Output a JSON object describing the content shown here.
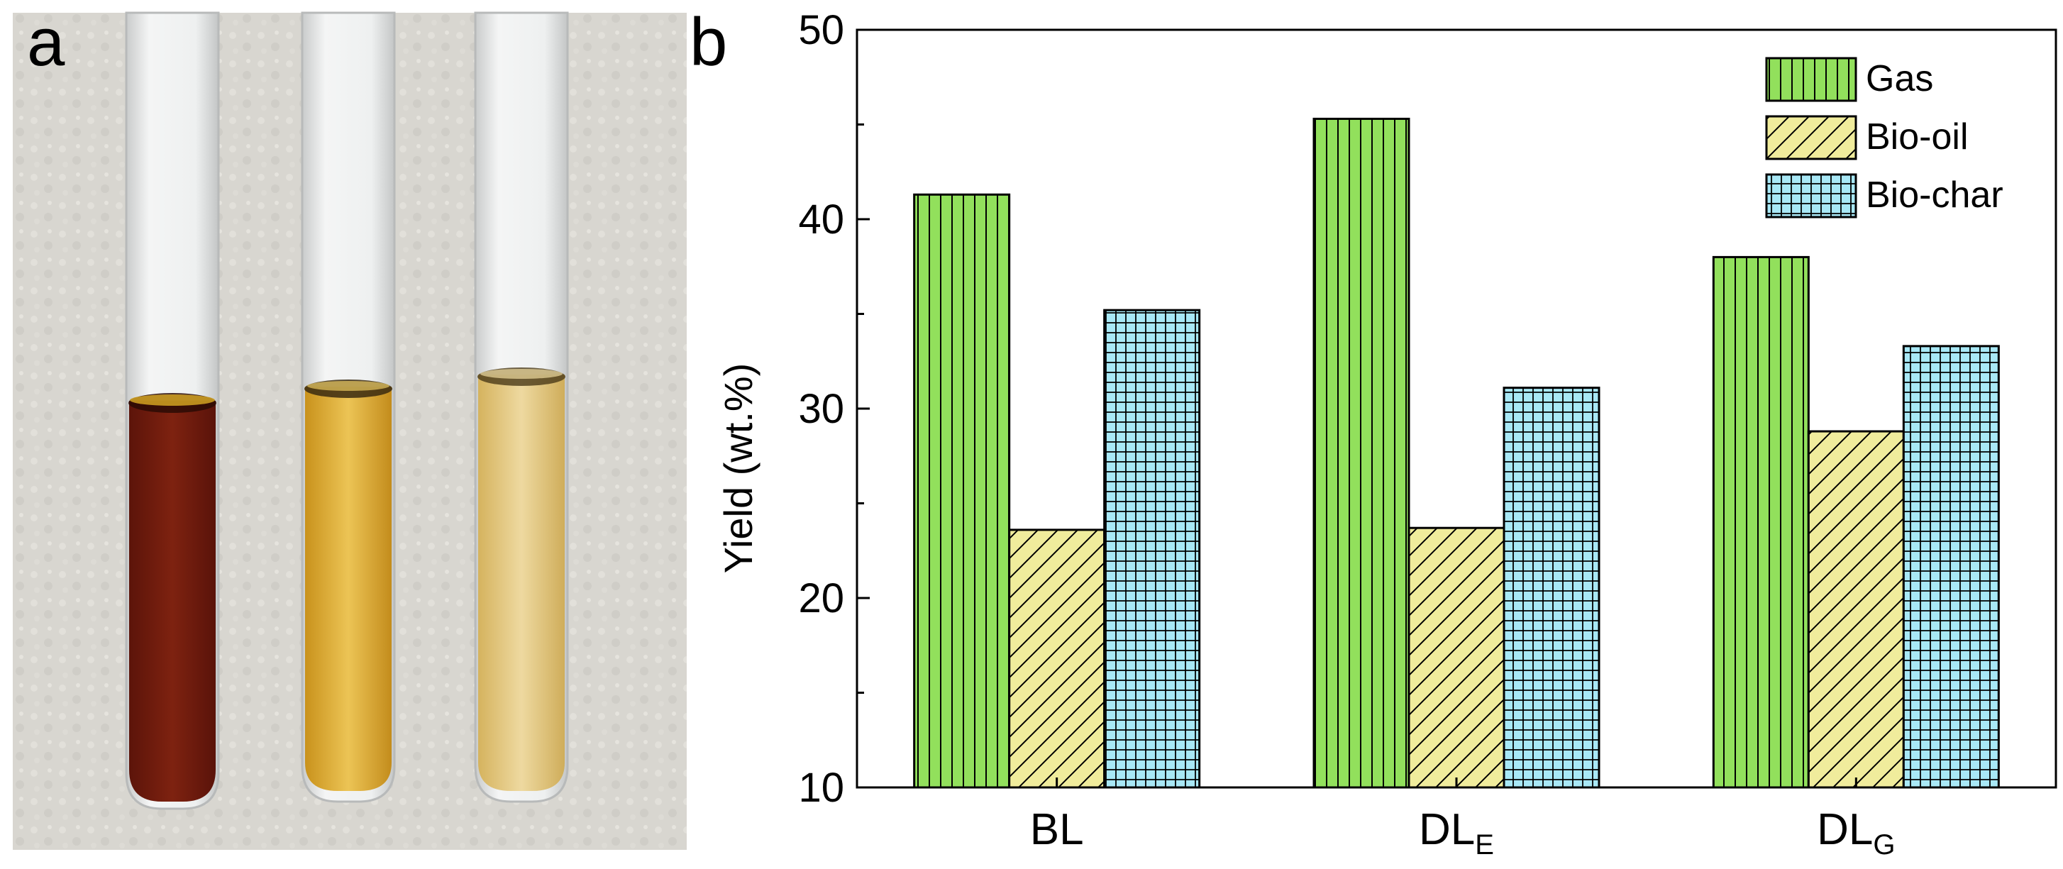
{
  "panel_a": {
    "label": "a",
    "description_names": [
      "dark-brown-sample",
      "golden-yellow-sample",
      "pale-yellow-sample"
    ],
    "colors": {
      "background": "#d8d6d0",
      "tube1_liquid": "#7a1e0e",
      "tube2_liquid": "#e2b23a",
      "tube3_liquid": "#e5cb82",
      "glass": "#e9eaea"
    }
  },
  "panel_b": {
    "label": "b"
  },
  "chart_data": {
    "type": "bar",
    "categories": [
      {
        "main": "BL",
        "sub": ""
      },
      {
        "main": "DL",
        "sub": "E"
      },
      {
        "main": "DL",
        "sub": "G"
      }
    ],
    "series": [
      {
        "name": "Gas",
        "values": [
          41.3,
          45.3,
          38.0
        ],
        "color": "#92e05c",
        "pattern": "vertical-lines"
      },
      {
        "name": "Bio-oil",
        "values": [
          23.6,
          23.7,
          28.8
        ],
        "color": "#f0ec9c",
        "pattern": "diagonal-lines"
      },
      {
        "name": "Bio-char",
        "values": [
          35.2,
          31.1,
          33.3
        ],
        "color": "#a8e8f6",
        "pattern": "grid"
      }
    ],
    "title": "",
    "xlabel": "",
    "ylabel": "Yield (wt.%)",
    "ylim": [
      10,
      50
    ],
    "yticks": [
      "10",
      "20",
      "30",
      "40",
      "50"
    ],
    "legend_position": "top-right",
    "grid": false
  }
}
